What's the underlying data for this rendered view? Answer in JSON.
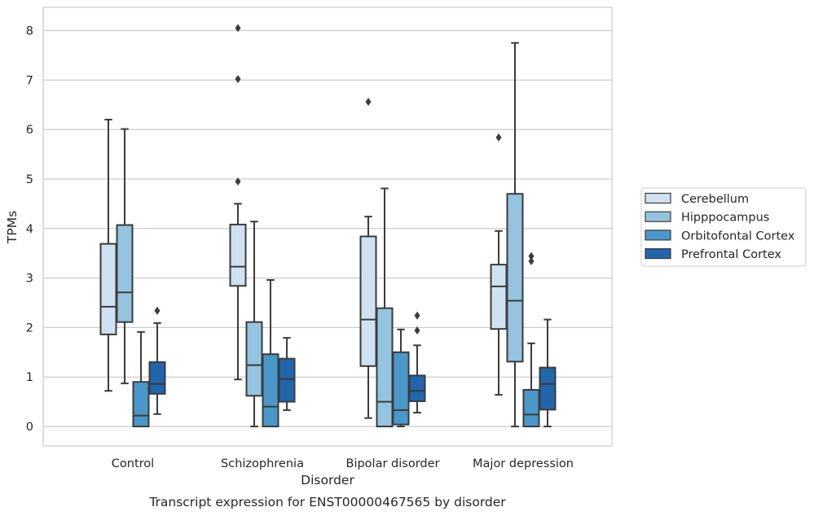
{
  "chart_data": {
    "type": "box",
    "title": "",
    "caption": "Transcript expression for ENST00000467565 by disorder",
    "xlabel": "Disorder",
    "ylabel": "TPMs",
    "ylim": [
      -0.4,
      8.45
    ],
    "yticks": [
      "0",
      "1",
      "2",
      "3",
      "4",
      "5",
      "6",
      "7",
      "8"
    ],
    "grid": "horizontal",
    "legend_position": "right",
    "categories": [
      "Control",
      "Schizophrenia",
      "Bipolar disorder",
      "Major depression"
    ],
    "series": [
      {
        "name": "Cerebellum",
        "color": "#d0e1f2",
        "boxes": [
          {
            "whislo": 0.72,
            "q1": 1.86,
            "med": 2.42,
            "q3": 3.69,
            "whishi": 6.2,
            "fliers": []
          },
          {
            "whislo": 0.95,
            "q1": 2.84,
            "med": 3.23,
            "q3": 4.08,
            "whishi": 4.5,
            "fliers": [
              8.05,
              7.02,
              4.95
            ]
          },
          {
            "whislo": 0.17,
            "q1": 1.22,
            "med": 2.16,
            "q3": 3.84,
            "whishi": 4.24,
            "fliers": [
              6.56
            ]
          },
          {
            "whislo": 0.64,
            "q1": 1.97,
            "med": 2.83,
            "q3": 3.27,
            "whishi": 3.95,
            "fliers": [
              5.84
            ]
          }
        ]
      },
      {
        "name": "Hipppocampus",
        "color": "#94c4df",
        "boxes": [
          {
            "whislo": 0.87,
            "q1": 2.11,
            "med": 2.71,
            "q3": 4.07,
            "whishi": 6.01,
            "fliers": []
          },
          {
            "whislo": 0.0,
            "q1": 0.62,
            "med": 1.24,
            "q3": 2.11,
            "whishi": 4.14,
            "fliers": []
          },
          {
            "whislo": 0.0,
            "q1": 0.0,
            "med": 0.5,
            "q3": 2.39,
            "whishi": 4.81,
            "fliers": []
          },
          {
            "whislo": 0.0,
            "q1": 1.31,
            "med": 2.54,
            "q3": 4.7,
            "whishi": 7.75,
            "fliers": []
          }
        ]
      },
      {
        "name": "Orbitofontal Cortex",
        "color": "#4a98c9",
        "boxes": [
          {
            "whislo": 0.0,
            "q1": 0.0,
            "med": 0.22,
            "q3": 0.9,
            "whishi": 1.91,
            "fliers": []
          },
          {
            "whislo": 0.0,
            "q1": 0.0,
            "med": 0.4,
            "q3": 1.46,
            "whishi": 2.96,
            "fliers": []
          },
          {
            "whislo": 0.0,
            "q1": 0.04,
            "med": 0.33,
            "q3": 1.5,
            "whishi": 1.96,
            "fliers": []
          },
          {
            "whislo": 0.0,
            "q1": 0.0,
            "med": 0.24,
            "q3": 0.74,
            "whishi": 1.68,
            "fliers": [
              3.44,
              3.34
            ]
          }
        ]
      },
      {
        "name": "Prefrontal Cortex",
        "color": "#2166ac",
        "boxes": [
          {
            "whislo": 0.25,
            "q1": 0.66,
            "med": 0.86,
            "q3": 1.3,
            "whishi": 2.09,
            "fliers": [
              2.34
            ]
          },
          {
            "whislo": 0.33,
            "q1": 0.5,
            "med": 0.96,
            "q3": 1.37,
            "whishi": 1.79,
            "fliers": []
          },
          {
            "whislo": 0.28,
            "q1": 0.51,
            "med": 0.72,
            "q3": 1.03,
            "whishi": 1.64,
            "fliers": [
              2.24,
              1.94
            ]
          },
          {
            "whislo": 0.0,
            "q1": 0.34,
            "med": 0.86,
            "q3": 1.19,
            "whishi": 2.16,
            "fliers": []
          }
        ]
      }
    ]
  }
}
